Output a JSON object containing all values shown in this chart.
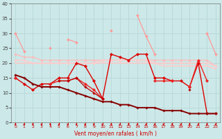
{
  "xlabel": "Vent moyen/en rafales ( km/h )",
  "xlim": [
    -0.5,
    23.5
  ],
  "ylim": [
    0,
    40
  ],
  "yticks": [
    0,
    5,
    10,
    15,
    20,
    25,
    30,
    35,
    40
  ],
  "xticks": [
    0,
    1,
    2,
    3,
    4,
    5,
    6,
    7,
    8,
    9,
    10,
    11,
    12,
    13,
    14,
    15,
    16,
    17,
    18,
    19,
    20,
    21,
    22,
    23
  ],
  "bg_color": "#cce8e8",
  "grid_color": "#aed4d4",
  "series": [
    {
      "x": [
        0,
        1,
        2,
        3,
        4,
        5,
        6,
        7,
        8,
        9,
        10,
        11,
        12,
        13,
        14,
        15,
        16,
        17,
        18,
        19,
        20,
        21,
        22,
        23
      ],
      "y": [
        30,
        24,
        null,
        null,
        25,
        null,
        28,
        27,
        null,
        null,
        null,
        31,
        null,
        null,
        36,
        29,
        23,
        null,
        null,
        null,
        null,
        null,
        30,
        23
      ],
      "color": "#ff9999",
      "lw": 0.9,
      "marker": "D",
      "ms": 2.0
    },
    {
      "x": [
        0,
        1,
        2,
        3,
        4,
        5,
        6,
        7,
        8,
        9,
        10,
        11,
        12,
        13,
        14,
        15,
        16,
        17,
        18,
        19,
        20,
        21,
        22,
        23
      ],
      "y": [
        23,
        22,
        22,
        21,
        21,
        21,
        21,
        21,
        21,
        21,
        21,
        21,
        21,
        21,
        21,
        21,
        21,
        21,
        21,
        21,
        21,
        21,
        21,
        19
      ],
      "color": "#ffbbbb",
      "lw": 1.0,
      "marker": "D",
      "ms": 1.8
    },
    {
      "x": [
        0,
        1,
        2,
        3,
        4,
        5,
        6,
        7,
        8,
        9,
        10,
        11,
        12,
        13,
        14,
        15,
        16,
        17,
        18,
        19,
        20,
        21,
        22,
        23
      ],
      "y": [
        21,
        21,
        20,
        20,
        20,
        20,
        20,
        20,
        20,
        20,
        21,
        21,
        21,
        21,
        21,
        21,
        20,
        20,
        20,
        20,
        20,
        20,
        20,
        19
      ],
      "color": "#ffcccc",
      "lw": 1.2,
      "marker": "D",
      "ms": 1.8
    },
    {
      "x": [
        0,
        1,
        2,
        3,
        4,
        5,
        6,
        7,
        8,
        9,
        10,
        11,
        12,
        13,
        14,
        15,
        16,
        17,
        18,
        19,
        20,
        21,
        22,
        23
      ],
      "y": [
        20,
        20,
        20,
        20,
        20,
        20,
        20,
        20,
        20,
        20,
        20,
        20,
        20,
        20,
        20,
        20,
        20,
        19,
        19,
        19,
        19,
        19,
        19,
        18
      ],
      "color": "#ffcccc",
      "lw": 1.2,
      "marker": null,
      "ms": 0
    },
    {
      "x": [
        0,
        1,
        2,
        3,
        4,
        5,
        6,
        7,
        8,
        9,
        10,
        11,
        12,
        13,
        14,
        15,
        16,
        17,
        18,
        19,
        20,
        21,
        22,
        23
      ],
      "y": [
        15,
        13,
        11,
        13,
        13,
        15,
        15,
        20,
        19,
        14,
        8,
        23,
        22,
        21,
        23,
        23,
        15,
        15,
        14,
        14,
        12,
        20,
        3,
        3
      ],
      "color": "#dd0000",
      "lw": 1.0,
      "marker": "D",
      "ms": 2.2
    },
    {
      "x": [
        0,
        1,
        2,
        3,
        4,
        5,
        6,
        7,
        8,
        9,
        10,
        11,
        12,
        13,
        14,
        15,
        16,
        17,
        18,
        19,
        20,
        21,
        22,
        23
      ],
      "y": [
        15,
        null,
        null,
        null,
        13,
        14,
        14,
        15,
        13,
        11,
        8,
        null,
        null,
        null,
        null,
        null,
        14,
        14,
        14,
        null,
        12,
        21,
        14,
        null
      ],
      "color": "#ee2222",
      "lw": 1.0,
      "marker": "D",
      "ms": 2.2
    },
    {
      "x": [
        0,
        1,
        2,
        3,
        4,
        5,
        6,
        7,
        8,
        9,
        10,
        11,
        12,
        13,
        14,
        15,
        16,
        17,
        18,
        19,
        20,
        21,
        22,
        23
      ],
      "y": [
        null,
        null,
        null,
        null,
        null,
        14,
        14,
        15,
        12,
        10,
        8,
        null,
        null,
        null,
        null,
        null,
        null,
        null,
        null,
        null,
        11,
        null,
        null,
        null
      ],
      "color": "#bb0000",
      "lw": 0.9,
      "marker": "D",
      "ms": 1.8
    },
    {
      "x": [
        0,
        1,
        2,
        3,
        4,
        5,
        6,
        7,
        8,
        9,
        10,
        11,
        12,
        13,
        14,
        15,
        16,
        17,
        18,
        19,
        20,
        21,
        22,
        23
      ],
      "y": [
        16,
        15,
        13,
        12,
        12,
        12,
        11,
        10,
        9,
        8,
        7,
        7,
        6,
        6,
        5,
        5,
        5,
        4,
        4,
        4,
        3,
        3,
        3,
        3
      ],
      "color": "#880000",
      "lw": 1.4,
      "marker": "D",
      "ms": 1.8
    }
  ]
}
